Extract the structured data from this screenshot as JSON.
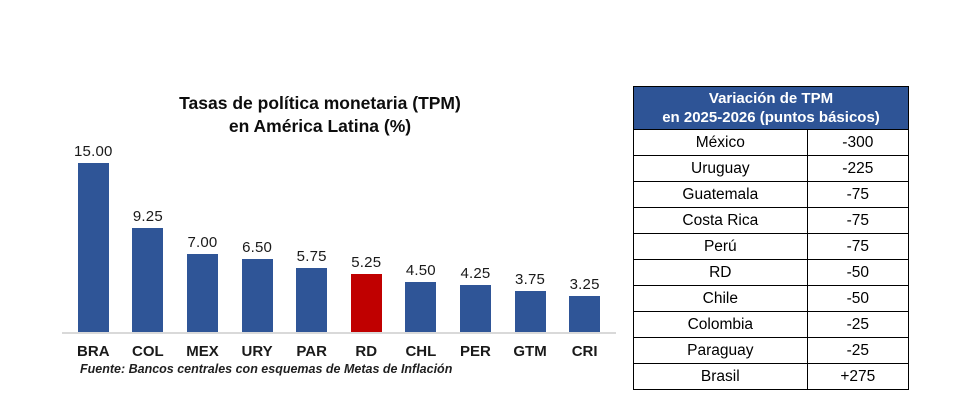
{
  "page": {
    "background": "#ffffff"
  },
  "chart": {
    "title_line1": "Tasas de política monetaria (TPM)",
    "title_line2": "en América Latina (%)",
    "source": "Fuente: Bancos centrales con esquemas de Metas de Inflación",
    "axis_color": "#d9d9d9"
  },
  "chart_data": {
    "type": "bar",
    "title": "Tasas de política monetaria (TPM) en América Latina (%)",
    "categories": [
      "BRA",
      "COL",
      "MEX",
      "URY",
      "PAR",
      "RD",
      "CHL",
      "PER",
      "GTM",
      "CRI"
    ],
    "values": [
      15.0,
      9.25,
      7.0,
      6.5,
      5.75,
      5.25,
      4.5,
      4.25,
      3.75,
      3.25
    ],
    "value_labels": [
      "15.00",
      "9.25",
      "7.00",
      "6.50",
      "5.75",
      "5.25",
      "4.50",
      "4.25",
      "3.75",
      "3.25"
    ],
    "xlabel": "",
    "ylabel": "",
    "ylim": [
      0,
      16
    ],
    "grid": false,
    "legend": false,
    "series_color": "#2F5597",
    "highlight": {
      "category": "RD",
      "color": "#C00000"
    }
  },
  "table": {
    "header_line1": "Variación de TPM",
    "header_line2": "en 2025-2026 (puntos básicos)",
    "header_bg": "#2E5496",
    "header_text_color": "#FFFFFF",
    "columns": [
      "country",
      "value"
    ],
    "rows": [
      {
        "country": "México",
        "value": "-300"
      },
      {
        "country": "Uruguay",
        "value": "-225"
      },
      {
        "country": "Guatemala",
        "value": "-75"
      },
      {
        "country": "Costa Rica",
        "value": "-75"
      },
      {
        "country": "Perú",
        "value": "-75"
      },
      {
        "country": "RD",
        "value": "-50"
      },
      {
        "country": "Chile",
        "value": "-50"
      },
      {
        "country": "Colombia",
        "value": "-25"
      },
      {
        "country": "Paraguay",
        "value": "-25"
      },
      {
        "country": "Brasil",
        "value": "+275"
      }
    ]
  }
}
